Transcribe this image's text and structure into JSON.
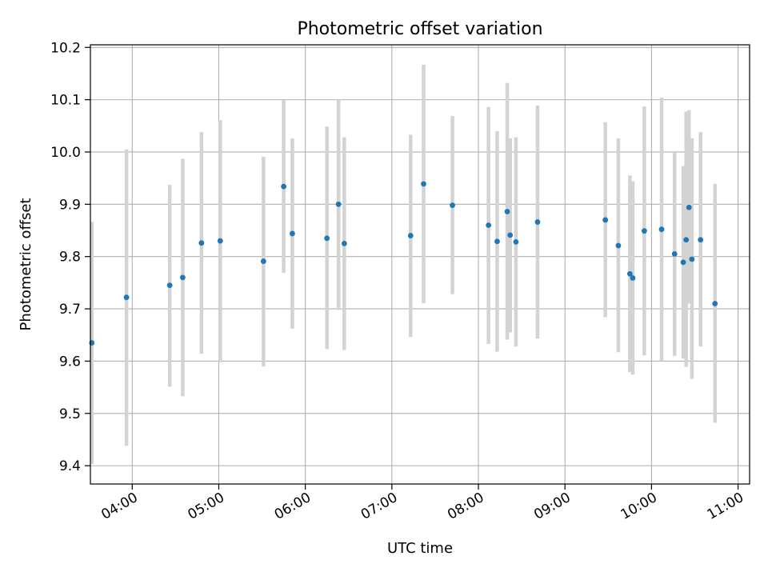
{
  "chart_data": {
    "type": "scatter",
    "title": "Photometric offset variation",
    "xlabel": "UTC time",
    "ylabel": "Photometric offset",
    "xlim": [
      "03:31",
      "11:08"
    ],
    "ylim": [
      9.365,
      10.205
    ],
    "x_ticks": [
      "04:00",
      "05:00",
      "06:00",
      "07:00",
      "08:00",
      "09:00",
      "10:00",
      "11:00"
    ],
    "y_ticks": [
      "9.4",
      "9.5",
      "9.6",
      "9.7",
      "9.8",
      "9.9",
      "10.0",
      "10.1",
      "10.2"
    ],
    "grid": true,
    "marker_color": "#1f77b4",
    "errorbar_color": "#d3d3d3",
    "points": [
      {
        "x": "03:32",
        "y": 9.635,
        "low": 9.403,
        "high": 9.866
      },
      {
        "x": "03:56",
        "y": 9.722,
        "low": 9.438,
        "high": 10.005
      },
      {
        "x": "04:26",
        "y": 9.745,
        "low": 9.551,
        "high": 9.937
      },
      {
        "x": "04:35",
        "y": 9.76,
        "low": 9.533,
        "high": 9.987
      },
      {
        "x": "04:48",
        "y": 9.826,
        "low": 9.614,
        "high": 10.038
      },
      {
        "x": "05:01",
        "y": 9.83,
        "low": 9.598,
        "high": 10.061
      },
      {
        "x": "05:31",
        "y": 9.791,
        "low": 9.59,
        "high": 9.991
      },
      {
        "x": "05:45",
        "y": 9.934,
        "low": 9.769,
        "high": 10.099
      },
      {
        "x": "05:51",
        "y": 9.844,
        "low": 9.662,
        "high": 10.026
      },
      {
        "x": "06:15",
        "y": 9.835,
        "low": 9.623,
        "high": 10.049
      },
      {
        "x": "06:23",
        "y": 9.9,
        "low": 9.698,
        "high": 10.1
      },
      {
        "x": "06:27",
        "y": 9.825,
        "low": 9.621,
        "high": 10.028
      },
      {
        "x": "07:13",
        "y": 9.84,
        "low": 9.646,
        "high": 10.033
      },
      {
        "x": "07:22",
        "y": 9.939,
        "low": 9.711,
        "high": 10.167
      },
      {
        "x": "07:42",
        "y": 9.898,
        "low": 9.728,
        "high": 10.069
      },
      {
        "x": "08:07",
        "y": 9.86,
        "low": 9.633,
        "high": 10.086
      },
      {
        "x": "08:13",
        "y": 9.829,
        "low": 9.618,
        "high": 10.04
      },
      {
        "x": "08:20",
        "y": 9.886,
        "low": 9.641,
        "high": 10.132
      },
      {
        "x": "08:22",
        "y": 9.841,
        "low": 9.655,
        "high": 10.026
      },
      {
        "x": "08:26",
        "y": 9.828,
        "low": 9.628,
        "high": 10.028
      },
      {
        "x": "08:41",
        "y": 9.866,
        "low": 9.643,
        "high": 10.089
      },
      {
        "x": "09:28",
        "y": 9.87,
        "low": 9.684,
        "high": 10.057
      },
      {
        "x": "09:37",
        "y": 9.821,
        "low": 9.617,
        "high": 10.026
      },
      {
        "x": "09:45",
        "y": 9.767,
        "low": 9.579,
        "high": 9.955
      },
      {
        "x": "09:47",
        "y": 9.759,
        "low": 9.574,
        "high": 9.944
      },
      {
        "x": "09:55",
        "y": 9.849,
        "low": 9.611,
        "high": 10.087
      },
      {
        "x": "10:07",
        "y": 9.852,
        "low": 9.6,
        "high": 10.104
      },
      {
        "x": "10:16",
        "y": 9.805,
        "low": 9.61,
        "high": 10.0
      },
      {
        "x": "10:22",
        "y": 9.789,
        "low": 9.605,
        "high": 9.973
      },
      {
        "x": "10:24",
        "y": 9.832,
        "low": 9.589,
        "high": 10.077
      },
      {
        "x": "10:26",
        "y": 9.894,
        "low": 9.71,
        "high": 10.08
      },
      {
        "x": "10:28",
        "y": 9.795,
        "low": 9.566,
        "high": 10.026
      },
      {
        "x": "10:34",
        "y": 9.832,
        "low": 9.628,
        "high": 10.038
      },
      {
        "x": "10:44",
        "y": 9.71,
        "low": 9.482,
        "high": 9.939
      }
    ]
  }
}
